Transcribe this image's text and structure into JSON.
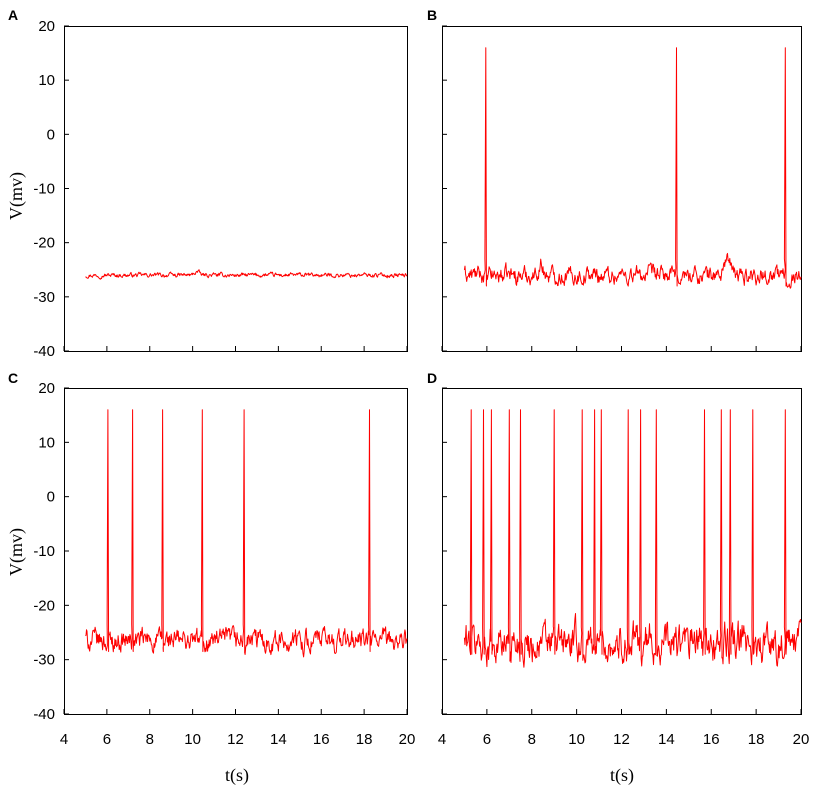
{
  "figure": {
    "y_axis_title": "V(mv)",
    "x_axis_title": "t(s)"
  },
  "chart_data": [
    {
      "type": "line",
      "panel_label": "A",
      "xlabel": "",
      "ylabel": "V(mv)",
      "xlim": [
        4,
        20
      ],
      "ylim": [
        -40,
        20
      ],
      "yticks": [
        -40,
        -30,
        -20,
        -10,
        0,
        10,
        20
      ],
      "xticks_labeled": false,
      "series_color": "#ff0000",
      "baseline_mean": -26,
      "noise_amplitude": 0.3,
      "x_start": 5,
      "x_end": 20,
      "spike_times": [],
      "spike_peak": null,
      "small_bumps": [
        {
          "t": 10.2,
          "v": -25.3
        }
      ]
    },
    {
      "type": "line",
      "panel_label": "B",
      "xlabel": "",
      "ylabel": "",
      "xlim": [
        4,
        20
      ],
      "ylim": [
        -40,
        20
      ],
      "yticks_labeled": false,
      "xticks_labeled": false,
      "series_color": "#ff0000",
      "baseline_mean": -26,
      "noise_amplitude": 1.2,
      "x_start": 5,
      "x_end": 20,
      "spike_times": [
        5.95,
        14.45,
        19.3
      ],
      "spike_peak": 16,
      "small_bumps": [
        {
          "t": 8.4,
          "v": -24
        },
        {
          "t": 16.7,
          "v": -22
        }
      ]
    },
    {
      "type": "line",
      "panel_label": "C",
      "xlabel": "t(s)",
      "ylabel": "V(mv)",
      "xlim": [
        4,
        20
      ],
      "ylim": [
        -40,
        20
      ],
      "yticks": [
        -40,
        -30,
        -20,
        -10,
        0,
        10,
        20
      ],
      "xticks": [
        4,
        6,
        8,
        10,
        12,
        14,
        16,
        18,
        20
      ],
      "series_color": "#ff0000",
      "baseline_mean": -26.5,
      "noise_amplitude": 1.5,
      "x_start": 5,
      "x_end": 20,
      "spike_times": [
        6.05,
        7.2,
        8.6,
        10.45,
        12.4,
        18.25
      ],
      "spike_peak": 16,
      "small_bumps": []
    },
    {
      "type": "line",
      "panel_label": "D",
      "xlabel": "t(s)",
      "ylabel": "",
      "xlim": [
        4,
        20
      ],
      "ylim": [
        -40,
        20
      ],
      "yticks_labeled": false,
      "xticks": [
        4,
        6,
        8,
        10,
        12,
        14,
        16,
        18,
        20
      ],
      "series_color": "#ff0000",
      "baseline_mean": -27,
      "noise_amplitude": 2.6,
      "x_start": 5,
      "x_end": 20,
      "spike_times": [
        5.3,
        5.85,
        6.2,
        7.0,
        7.5,
        9.0,
        10.25,
        10.8,
        11.1,
        12.3,
        12.85,
        13.55,
        15.7,
        16.45,
        16.85,
        17.85,
        19.3
      ],
      "spike_peak": 16,
      "small_bumps": []
    }
  ]
}
